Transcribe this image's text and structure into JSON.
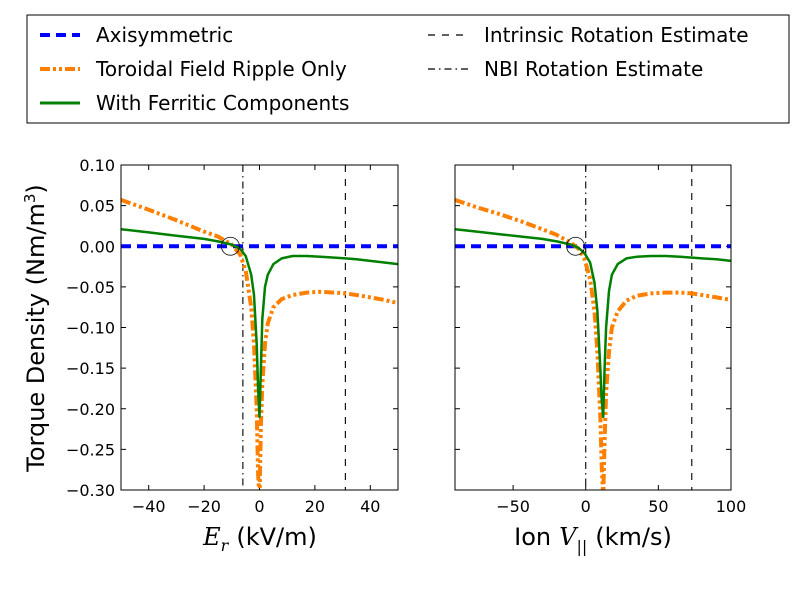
{
  "legend": {
    "entries": [
      {
        "label": "Axisymmetric",
        "color": "#0000ff",
        "style": "dashed-thick"
      },
      {
        "label": "Toroidal Field Ripple Only",
        "color": "#ff8000",
        "style": "dashdot-dotted"
      },
      {
        "label": "With Ferritic Components",
        "color": "#008000",
        "style": "solid"
      },
      {
        "label": "Intrinsic Rotation Estimate",
        "color": "#000000",
        "style": "dashed"
      },
      {
        "label": "NBI Rotation Estimate",
        "color": "#000000",
        "style": "dashdot"
      }
    ]
  },
  "shared_ylabel": "Torque Density (Nm/m3)",
  "chart_data": [
    {
      "type": "line",
      "xlabel_var": "E",
      "xlabel_sub": "r",
      "xlabel_units": "(kV/m)",
      "ylabel": "Torque Density (Nm/m3)",
      "xlim": [
        -50,
        50
      ],
      "ylim": [
        -0.3,
        0.1
      ],
      "x_ticks": [
        -40,
        -20,
        0,
        20,
        40
      ],
      "y_ticks": [
        0.1,
        0.05,
        0.0,
        -0.05,
        -0.1,
        -0.15,
        -0.2,
        -0.25,
        -0.3
      ],
      "x_tick_labels": [
        "−40",
        "−20",
        "0",
        "20",
        "40"
      ],
      "y_tick_labels": [
        "0.10",
        "0.05",
        "0.00",
        "−0.05",
        "−0.10",
        "−0.15",
        "−0.20",
        "−0.25",
        "−0.30"
      ],
      "vlines": [
        {
          "name": "NBI Rotation Estimate",
          "x": -6,
          "style": "dashdot"
        },
        {
          "name": "Intrinsic Rotation Estimate",
          "x": 31,
          "style": "dashed"
        }
      ],
      "circle_marker": {
        "x": -10.5,
        "y": 0.0
      },
      "series": [
        {
          "name": "Axisymmetric",
          "x": [
            -50,
            50
          ],
          "y": [
            0.0,
            0.0
          ]
        },
        {
          "name": "Toroidal Field Ripple Only",
          "x": [
            -50,
            -40,
            -30,
            -20,
            -15,
            -10,
            -7,
            -5,
            -3,
            -2,
            -1,
            -0.5,
            0,
            0.5,
            1,
            2,
            3,
            5,
            8,
            12,
            17,
            22,
            27,
            31,
            35,
            40,
            45,
            50
          ],
          "y": [
            0.057,
            0.045,
            0.032,
            0.018,
            0.012,
            0.002,
            -0.01,
            -0.03,
            -0.075,
            -0.12,
            -0.2,
            -0.28,
            -0.31,
            -0.22,
            -0.17,
            -0.12,
            -0.095,
            -0.075,
            -0.065,
            -0.06,
            -0.057,
            -0.056,
            -0.057,
            -0.058,
            -0.06,
            -0.063,
            -0.066,
            -0.07
          ]
        },
        {
          "name": "With Ferritic Components",
          "x": [
            -50,
            -40,
            -30,
            -20,
            -15,
            -10,
            -7,
            -5,
            -3,
            -2,
            -1,
            -0.5,
            0,
            0.5,
            1,
            2,
            3,
            5,
            8,
            12,
            17,
            22,
            27,
            31,
            35,
            40,
            45,
            50
          ],
          "y": [
            0.021,
            0.017,
            0.013,
            0.009,
            0.006,
            0.002,
            -0.003,
            -0.012,
            -0.035,
            -0.06,
            -0.12,
            -0.175,
            -0.21,
            -0.15,
            -0.09,
            -0.05,
            -0.035,
            -0.022,
            -0.015,
            -0.012,
            -0.012,
            -0.013,
            -0.014,
            -0.015,
            -0.016,
            -0.018,
            -0.02,
            -0.022
          ]
        }
      ]
    },
    {
      "type": "line",
      "xlabel_prefix": "Ion",
      "xlabel_var": "V",
      "xlabel_sub": "||",
      "xlabel_units": "(km/s)",
      "xlim": [
        -90,
        100
      ],
      "ylim": [
        -0.3,
        0.1
      ],
      "x_ticks": [
        -50,
        0,
        50,
        100
      ],
      "x_tick_labels": [
        "−50",
        "0",
        "50",
        "100"
      ],
      "vlines": [
        {
          "name": "NBI Rotation Estimate",
          "x": 0,
          "style": "dashdot"
        },
        {
          "name": "Intrinsic Rotation Estimate",
          "x": 73,
          "style": "dashed"
        }
      ],
      "circle_marker": {
        "x": -7,
        "y": 0.0
      },
      "series": [
        {
          "name": "Axisymmetric",
          "x": [
            -90,
            100
          ],
          "y": [
            0.0,
            0.0
          ]
        },
        {
          "name": "Toroidal Field Ripple Only",
          "x": [
            -90,
            -75,
            -60,
            -45,
            -30,
            -20,
            -10,
            -5,
            -1,
            3,
            6,
            8,
            10,
            11,
            12,
            13,
            14,
            16,
            18,
            22,
            28,
            35,
            45,
            55,
            65,
            73,
            80,
            90,
            100
          ],
          "y": [
            0.057,
            0.048,
            0.04,
            0.031,
            0.021,
            0.014,
            0.004,
            -0.003,
            -0.015,
            -0.04,
            -0.08,
            -0.13,
            -0.21,
            -0.27,
            -0.31,
            -0.24,
            -0.18,
            -0.13,
            -0.1,
            -0.08,
            -0.067,
            -0.061,
            -0.058,
            -0.057,
            -0.057,
            -0.058,
            -0.06,
            -0.063,
            -0.066
          ]
        },
        {
          "name": "With Ferritic Components",
          "x": [
            -90,
            -75,
            -60,
            -45,
            -30,
            -20,
            -10,
            -5,
            -1,
            3,
            6,
            8,
            10,
            11,
            12,
            13,
            14,
            16,
            18,
            22,
            28,
            35,
            45,
            55,
            65,
            73,
            80,
            90,
            100
          ],
          "y": [
            0.021,
            0.018,
            0.015,
            0.012,
            0.009,
            0.006,
            0.002,
            -0.002,
            -0.008,
            -0.02,
            -0.045,
            -0.08,
            -0.15,
            -0.19,
            -0.21,
            -0.15,
            -0.1,
            -0.055,
            -0.035,
            -0.022,
            -0.015,
            -0.013,
            -0.012,
            -0.012,
            -0.013,
            -0.014,
            -0.015,
            -0.016,
            -0.018
          ]
        }
      ]
    }
  ]
}
